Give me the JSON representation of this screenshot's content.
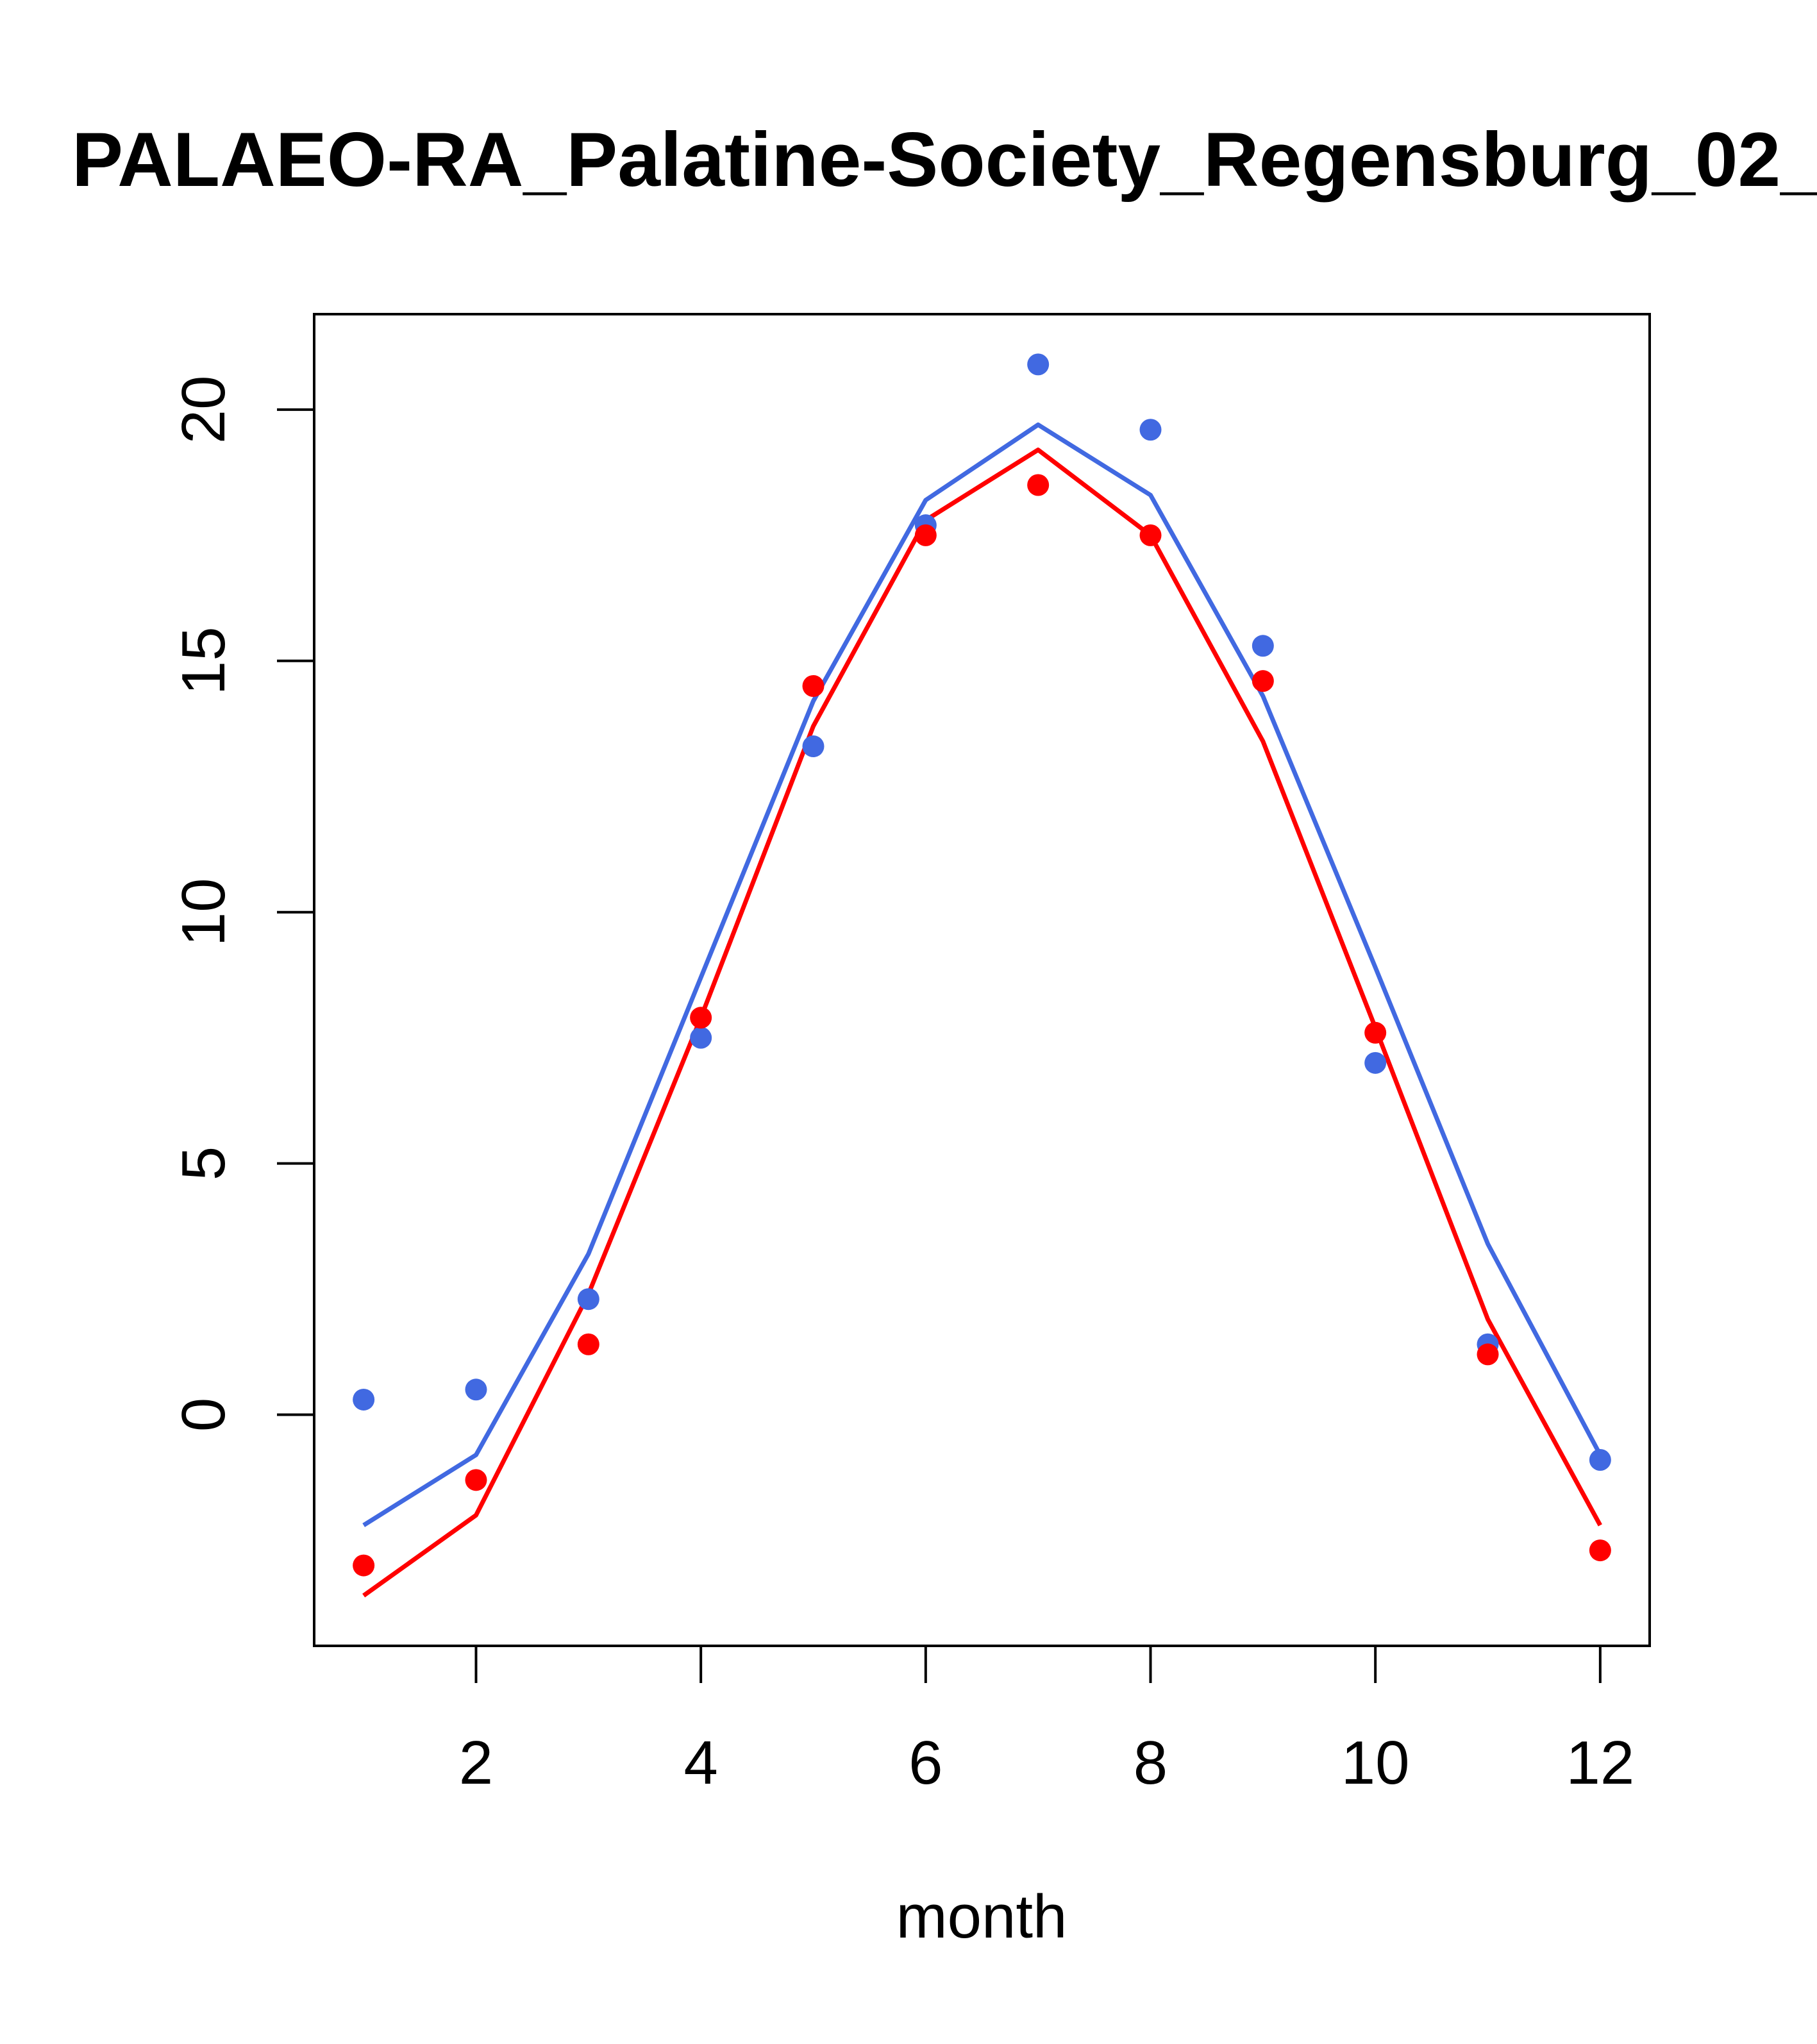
{
  "chart_data": {
    "type": "line",
    "title": "PALAEO-RA_Palatine-Society_Regensburg_02_",
    "xlabel": "month",
    "ylabel": "",
    "xlim": [
      0.56,
      12.44
    ],
    "ylim": [
      -4.6,
      21.9
    ],
    "x_ticks": [
      2,
      4,
      6,
      8,
      10,
      12
    ],
    "y_ticks": [
      0,
      5,
      10,
      15,
      20
    ],
    "x": [
      1,
      2,
      3,
      4,
      5,
      6,
      7,
      8,
      9,
      10,
      11,
      12
    ],
    "series": [
      {
        "name": "blue-line",
        "kind": "line",
        "color": "#4169E1",
        "values": [
          -2.2,
          -0.8,
          3.2,
          8.7,
          14.2,
          18.2,
          19.7,
          18.3,
          14.3,
          8.9,
          3.4,
          -0.8
        ]
      },
      {
        "name": "red-line",
        "kind": "line",
        "color": "#FF0000",
        "values": [
          -3.6,
          -2.0,
          2.4,
          7.9,
          13.7,
          17.8,
          19.2,
          17.5,
          13.4,
          7.7,
          1.9,
          -2.2
        ]
      },
      {
        "name": "blue-points",
        "kind": "points",
        "color": "#4169E1",
        "values": [
          0.3,
          0.5,
          2.3,
          7.5,
          13.3,
          17.7,
          20.9,
          19.6,
          15.3,
          7.0,
          1.4,
          -0.9
        ]
      },
      {
        "name": "red-points",
        "kind": "points",
        "color": "#FF0000",
        "values": [
          -3.0,
          -1.3,
          1.4,
          7.9,
          14.5,
          17.5,
          18.5,
          17.5,
          14.6,
          7.6,
          1.2,
          -2.7
        ]
      }
    ]
  }
}
